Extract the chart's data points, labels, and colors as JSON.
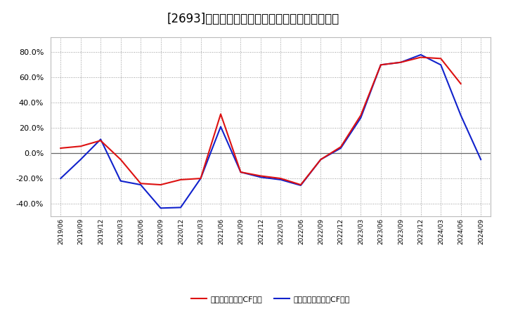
{
  "title": "[2693]　有利子負債キャッシュフロー比率の推移",
  "x_labels": [
    "2019/06",
    "2019/09",
    "2019/12",
    "2020/03",
    "2020/06",
    "2020/09",
    "2020/12",
    "2021/03",
    "2021/06",
    "2021/09",
    "2021/12",
    "2022/03",
    "2022/06",
    "2022/09",
    "2022/12",
    "2023/03",
    "2023/06",
    "2023/09",
    "2023/12",
    "2024/03",
    "2024/06",
    "2024/09"
  ],
  "red_series": [
    4.0,
    5.5,
    10.0,
    -5.0,
    -24.0,
    -25.0,
    -21.0,
    -20.0,
    31.0,
    -15.0,
    -18.0,
    -20.0,
    -25.0,
    -5.0,
    5.0,
    30.0,
    70.0,
    72.0,
    76.0,
    75.0,
    55.0,
    null
  ],
  "blue_series": [
    -20.0,
    -5.0,
    11.0,
    -22.0,
    -25.0,
    -43.5,
    -43.0,
    -20.0,
    21.0,
    -15.0,
    -19.0,
    -21.0,
    -25.5,
    -5.0,
    4.0,
    28.0,
    70.0,
    72.0,
    78.0,
    70.0,
    30.0,
    -5.0
  ],
  "red_color": "#dd1111",
  "blue_color": "#1122cc",
  "ylim": [
    -50,
    92
  ],
  "yticks": [
    -40.0,
    -20.0,
    0.0,
    20.0,
    40.0,
    60.0,
    80.0
  ],
  "legend_red": "有利子負債営業CF比率",
  "legend_blue": "有利子負債フリーCF比率",
  "bg_color": "#ffffff",
  "plot_bg_color": "#ffffff",
  "grid_color": "#999999",
  "zero_line_color": "#666666",
  "title_fontsize": 12,
  "outer_border_color": "#bbbbbb"
}
